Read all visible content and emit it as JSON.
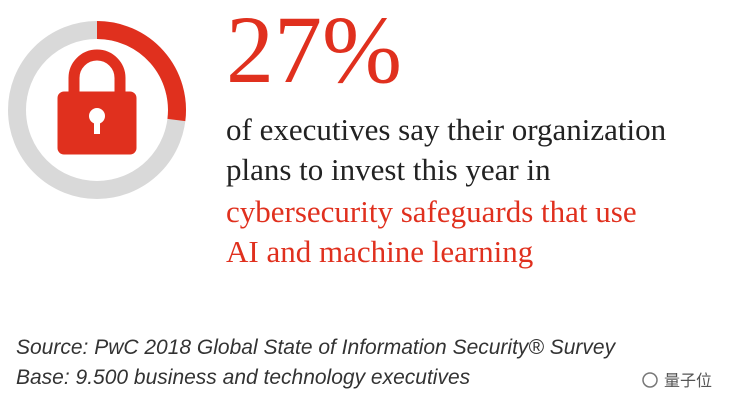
{
  "stat": {
    "value": 27,
    "label": "27%",
    "color": "#e0301e",
    "track_color": "#d9d9d9"
  },
  "statement": {
    "lines": [
      "of executives say their organization",
      "plans to invest this year in"
    ],
    "highlight_lines": [
      "cybersecurity safeguards that use",
      "AI and machine learning"
    ]
  },
  "footer": {
    "source": "Source: PwC 2018 Global State of Information Security® Survey",
    "base": "Base: 9.500 business and technology executives"
  },
  "watermark": "量子位"
}
